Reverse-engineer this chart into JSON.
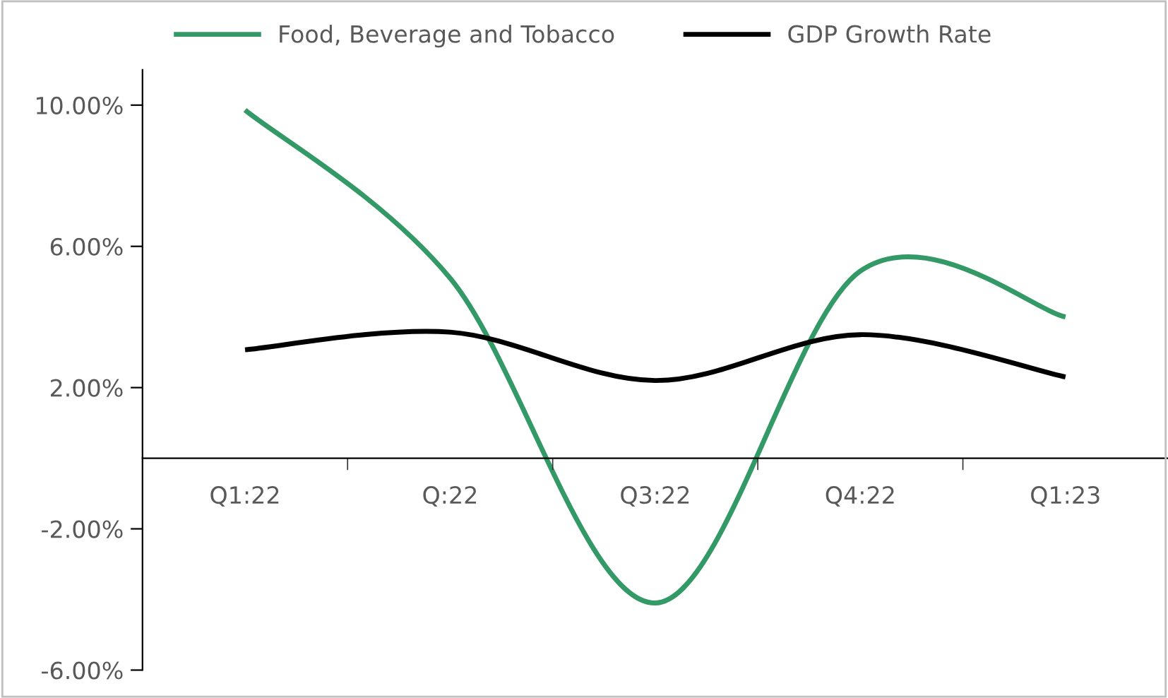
{
  "chart_data": {
    "type": "line",
    "categories": [
      "Q1:22",
      "Q:22",
      "Q3:22",
      "Q4:22",
      "Q1:23"
    ],
    "series": [
      {
        "name": "Food, Beverage and Tobacco",
        "color": "#339966",
        "values": [
          9.86,
          5.1,
          -4.1,
          5.3,
          4.0
        ]
      },
      {
        "name": "GDP Growth Rate",
        "color": "#000000",
        "values": [
          3.07,
          3.57,
          2.2,
          3.5,
          2.3
        ]
      }
    ],
    "ylim": [
      -6,
      11
    ],
    "yticks": [
      {
        "value": -6,
        "label": "-6.00%"
      },
      {
        "value": -2,
        "label": "-2.00%"
      },
      {
        "value": 2,
        "label": "2.00%"
      },
      {
        "value": 6,
        "label": "6.00%"
      },
      {
        "value": 10,
        "label": "10.00%"
      }
    ],
    "grid": false,
    "legend": "top",
    "marker": "none",
    "line_style": "solid"
  }
}
